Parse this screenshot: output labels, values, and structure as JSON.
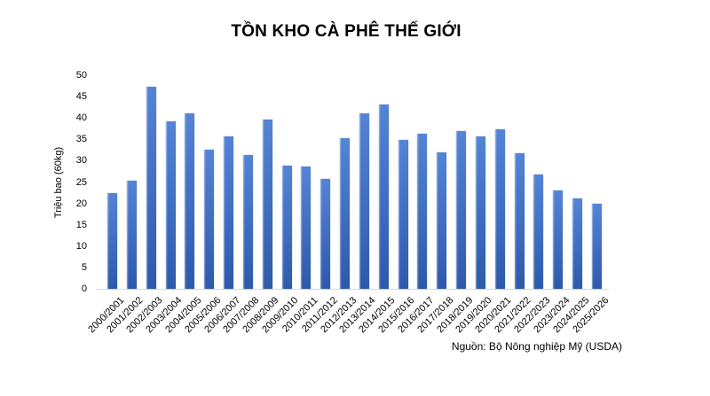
{
  "title": "TỒN KHO CÀ PHÊ THẾ GIỚI",
  "source": "Nguồn: Bộ Nông nghiệp Mỹ (USDA)",
  "colors": {
    "bar_top": "#5484d6",
    "bar_bottom": "#2d59ab",
    "bar_edge_highlight": "rgba(255,255,255,0.35)",
    "axis_line": "#d9d9d9",
    "text": "#000000"
  },
  "chart_data": {
    "type": "bar",
    "title": "TỒN KHO CÀ PHÊ THẾ GIỚI",
    "xlabel": "",
    "ylabel": "Triệu bao (60kg)",
    "ylim": [
      0,
      50
    ],
    "ytick_step": 5,
    "grid": false,
    "legend": false,
    "categories": [
      "2000/2001",
      "2001/2002",
      "2002/2003",
      "2003/2004",
      "2004/2005",
      "2005/2006",
      "2006/2007",
      "2007/2008",
      "2008/2009",
      "2009/2010",
      "2010/2011",
      "2011/2012",
      "2012/2013",
      "2013/2014",
      "2014/2015",
      "2015/2016",
      "2016/2017",
      "2017/2018",
      "2018/2019",
      "2019/2020",
      "2020/2021",
      "2021/2022",
      "2022/2023",
      "2023/2024",
      "2024/2025",
      "2025/2026"
    ],
    "values": [
      22.4,
      25.3,
      47.2,
      39.3,
      41.0,
      32.6,
      35.7,
      31.4,
      39.6,
      28.8,
      28.6,
      25.8,
      35.3,
      41.0,
      43.1,
      34.9,
      36.4,
      31.9,
      36.9,
      35.7,
      37.4,
      31.8,
      26.8,
      23.0,
      21.1,
      20.0
    ]
  }
}
